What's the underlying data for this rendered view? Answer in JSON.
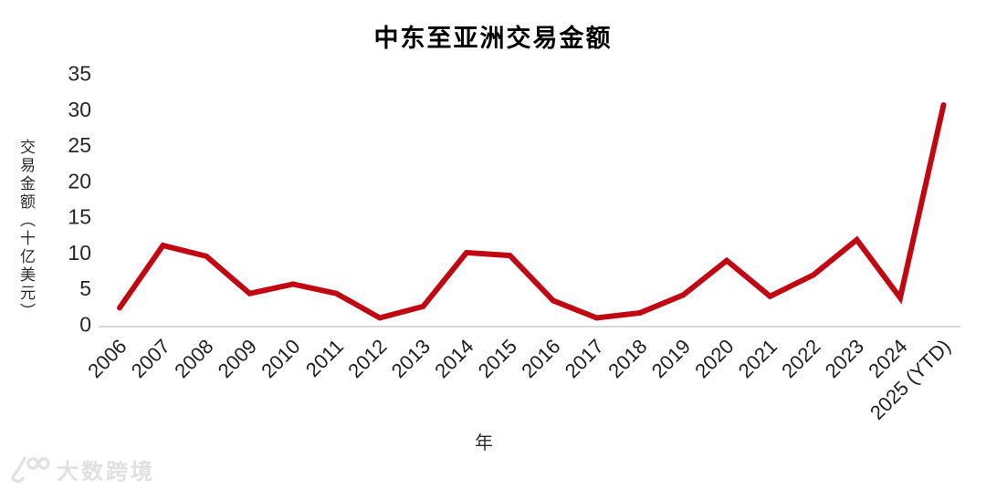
{
  "page": {
    "watermark_text": "大数跨境"
  },
  "chart_data": {
    "type": "line",
    "title": "中东至亚洲交易金额",
    "xlabel": "年",
    "ylabel": "交易金额（十亿美元）",
    "categories": [
      "2006",
      "2007",
      "2008",
      "2009",
      "2010",
      "2011",
      "2012",
      "2013",
      "2014",
      "2015",
      "2016",
      "2017",
      "2018",
      "2019",
      "2020",
      "2021",
      "2022",
      "2023",
      "2024",
      "2025 (YTD)"
    ],
    "values": [
      2.3,
      11,
      9.5,
      4.3,
      5.6,
      4.3,
      0.9,
      2.5,
      10,
      9.6,
      3.3,
      0.9,
      1.6,
      4.1,
      8.9,
      3.9,
      6.9,
      11.8,
      3.7,
      30.6
    ],
    "ylim": [
      0,
      35
    ],
    "y_ticks": [
      0,
      5,
      10,
      15,
      20,
      25,
      30,
      35
    ],
    "grid": false,
    "legend": "none",
    "line_color": "#c00712",
    "axis_line_color": "#d9d9d9",
    "tick_label_color": "#1f1f1f"
  }
}
